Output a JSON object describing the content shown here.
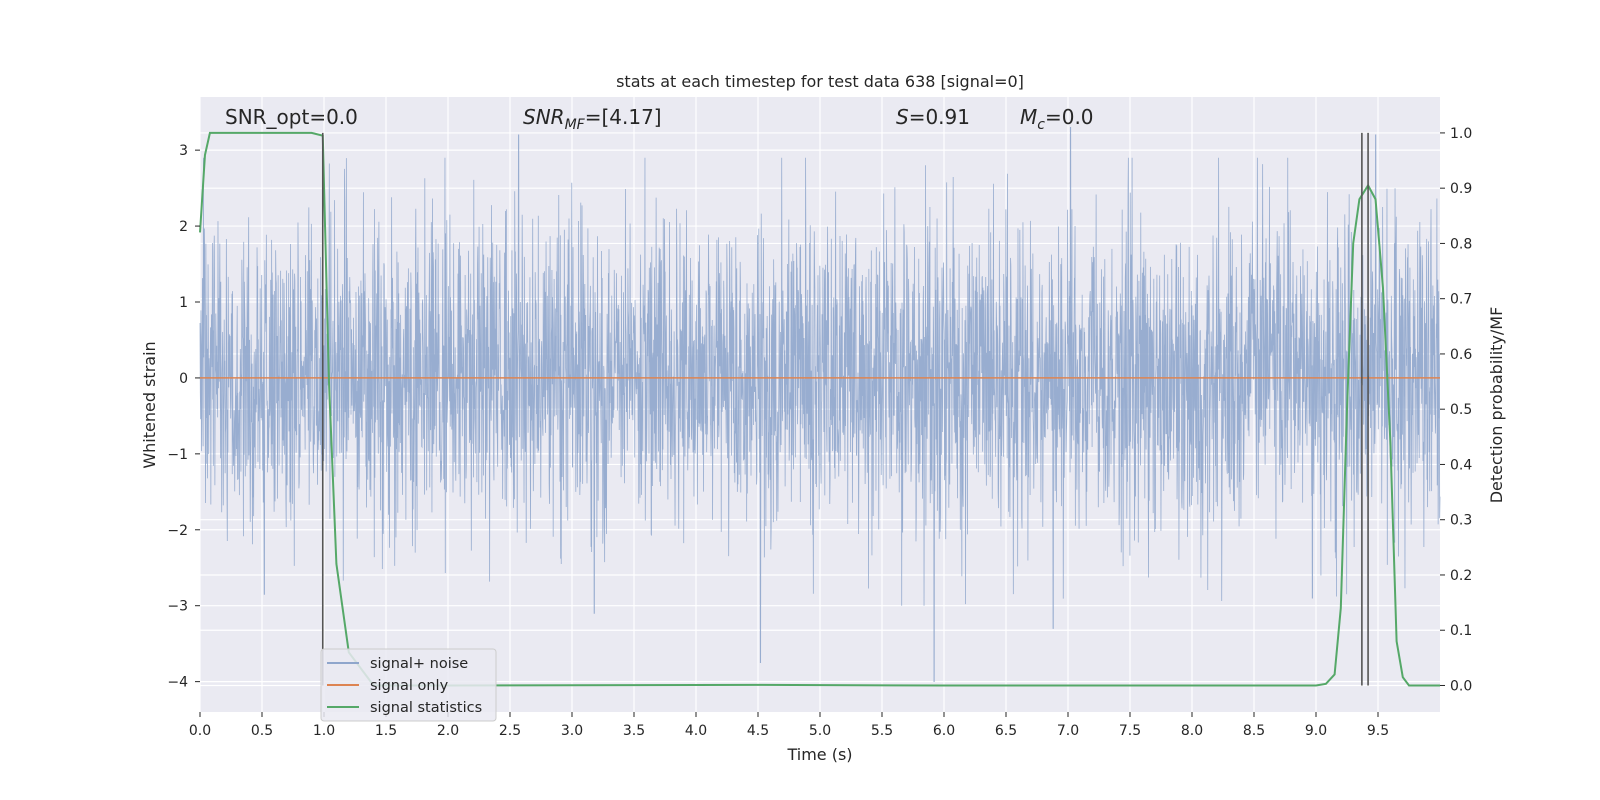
{
  "chart_data": {
    "type": "line",
    "title": "stats at each timestep for test data 638 [signal=0]",
    "xlabel": "Time (s)",
    "ylabel_left": "Whitened strain",
    "ylabel_right": "Detection probability/MF",
    "xlim": [
      0.0,
      10.0
    ],
    "ylim_left": [
      -4.4,
      3.7
    ],
    "ylim_right": [
      -0.048,
      1.065
    ],
    "x_ticks": [
      "0.0",
      "0.5",
      "1.0",
      "1.5",
      "2.0",
      "2.5",
      "3.0",
      "3.5",
      "4.0",
      "4.5",
      "5.0",
      "5.5",
      "6.0",
      "6.5",
      "7.0",
      "7.5",
      "8.0",
      "8.5",
      "9.0",
      "9.5"
    ],
    "y_left_ticks": [
      "3",
      "2",
      "1",
      "0",
      "−1",
      "−2",
      "−3",
      "−4"
    ],
    "y_right_ticks": [
      "1.0",
      "0.9",
      "0.8",
      "0.7",
      "0.6",
      "0.5",
      "0.4",
      "0.3",
      "0.2",
      "0.1",
      "0.0"
    ],
    "grid": true,
    "legend_position": "lower-left",
    "annotations": [
      {
        "id": "snr_opt",
        "text": "SNR_opt=0.0",
        "x_frac": 0.02
      },
      {
        "id": "snr_mf",
        "base": "SNR",
        "sub": "MF",
        "suffix": "=[4.17]"
      },
      {
        "id": "s_stat",
        "base": "S",
        "suffix": "=0.91"
      },
      {
        "id": "mc",
        "base": "M",
        "sub": "c",
        "suffix": "=0.0"
      }
    ],
    "vertical_lines_x": [
      0.99,
      9.37,
      9.42
    ],
    "series": [
      {
        "name": "signal+ noise",
        "axis": "left",
        "color": "#8fa6cc",
        "description": "whitened strain noise, roughly N(0,1), peaks spanning about -4.0 to 3.3",
        "notable_spikes": [
          {
            "x": 2.57,
            "y": 3.2
          },
          {
            "x": 7.02,
            "y": 3.3
          },
          {
            "x": 9.48,
            "y": 3.2
          },
          {
            "x": 5.92,
            "y": -4.0
          },
          {
            "x": 4.52,
            "y": -3.75
          },
          {
            "x": 3.18,
            "y": -3.1
          },
          {
            "x": 6.88,
            "y": -3.3
          },
          {
            "x": 0.52,
            "y": -2.85
          },
          {
            "x": 8.97,
            "y": -2.9
          }
        ]
      },
      {
        "name": "signal only",
        "axis": "left",
        "color": "#dd8452",
        "x": [
          0.0,
          10.0
        ],
        "y": [
          0.0,
          0.0
        ]
      },
      {
        "name": "signal statistics",
        "axis": "right",
        "color": "#55a868",
        "x": [
          0.0,
          0.04,
          0.08,
          0.15,
          0.5,
          0.9,
          0.99,
          1.04,
          1.1,
          1.2,
          1.4,
          2.0,
          4.5,
          6.0,
          9.0,
          9.08,
          9.15,
          9.2,
          9.25,
          9.3,
          9.35,
          9.42,
          9.48,
          9.54,
          9.6,
          9.65,
          9.7,
          9.75,
          9.82,
          9.9,
          10.0
        ],
        "y": [
          0.82,
          0.96,
          1.0,
          1.0,
          1.0,
          1.0,
          0.995,
          0.55,
          0.22,
          0.06,
          0.0,
          0.0,
          0.001,
          0.0,
          0.0,
          0.003,
          0.02,
          0.14,
          0.5,
          0.8,
          0.88,
          0.905,
          0.88,
          0.72,
          0.44,
          0.08,
          0.015,
          0.0,
          0.0,
          0.0,
          0.0
        ]
      }
    ]
  },
  "colors": {
    "plot_bg": "#eaeaf2",
    "grid": "#ffffff",
    "vline": "#555555"
  }
}
